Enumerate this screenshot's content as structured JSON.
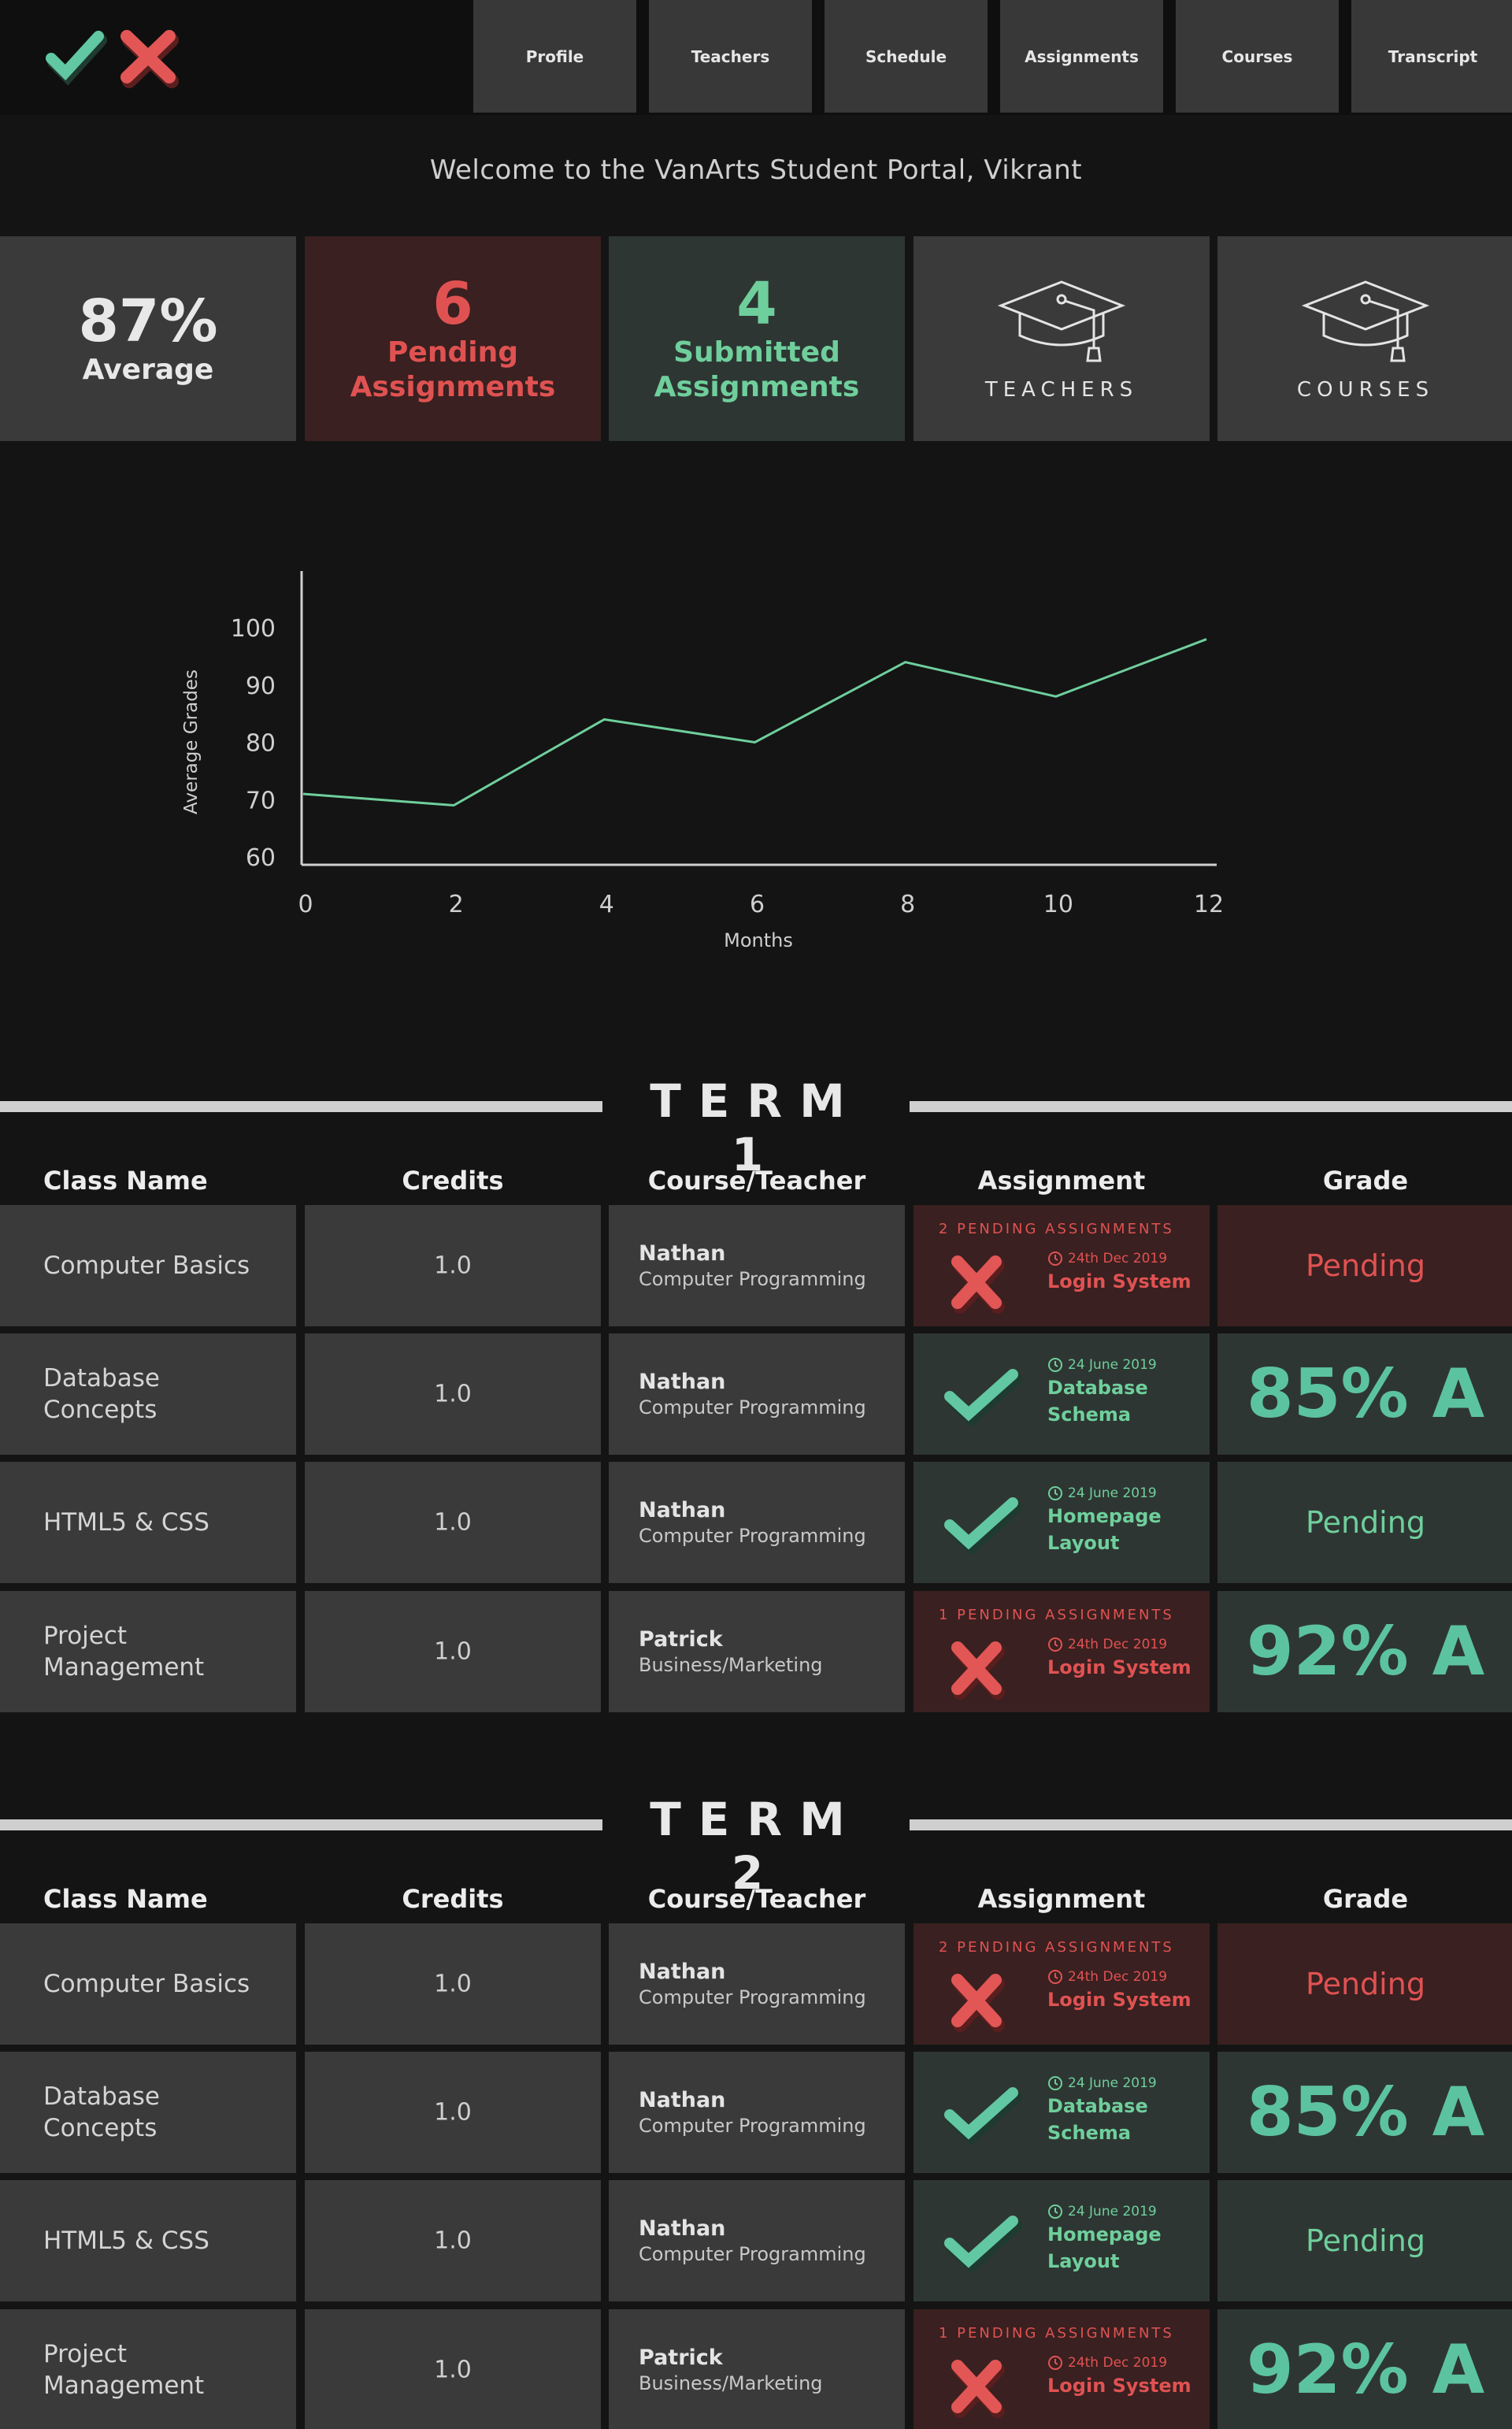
{
  "nav": [
    "Profile",
    "Teachers",
    "Schedule",
    "Assignments",
    "Courses",
    "Transcript"
  ],
  "welcome": "Welcome to the VanArts Student Portal, Vikrant",
  "stats": {
    "average_value": "87%",
    "average_label": "Average",
    "pending_count": "6",
    "pending_label_1": "Pending",
    "pending_label_2": "Assignments",
    "submitted_count": "4",
    "submitted_label_1": "Submitted",
    "submitted_label_2": "Assignments",
    "teachers_label": "TEACHERS",
    "courses_label": "COURSES"
  },
  "colors": {
    "red": "#e05252",
    "green": "#6fcf9c",
    "teal": "#5cc3a0",
    "card": "#3a3a3a"
  },
  "chart_data": {
    "type": "line",
    "x": [
      0,
      2,
      4,
      6,
      8,
      10,
      12
    ],
    "y": [
      71,
      69,
      84,
      80,
      94,
      88,
      98
    ],
    "xlabel": "Months",
    "ylabel": "Average Grades",
    "xlim": [
      0,
      12
    ],
    "ylim": [
      60,
      105
    ],
    "xticks": [
      "0",
      "2",
      "4",
      "6",
      "8",
      "10",
      "12"
    ],
    "yticks": [
      "60",
      "70",
      "80",
      "90",
      "100"
    ],
    "grid": false,
    "line_color": "#6fcf9c"
  },
  "table_headers": {
    "class_name": "Class Name",
    "credits": "Credits",
    "course_teacher": "Course/Teacher",
    "assignment": "Assignment",
    "grade": "Grade"
  },
  "terms": [
    {
      "title": "TERM 1",
      "rows": [
        {
          "class": "Computer Basics",
          "credits": "1.0",
          "teacher": "Nathan",
          "course": "Computer Programming",
          "pending_header": "2 PENDING ASSIGNMENTS",
          "date": "24th Dec 2019",
          "assignment": "Login System",
          "grade": "Pending"
        },
        {
          "class": "Database Concepts",
          "credits": "1.0",
          "teacher": "Nathan",
          "course": "Computer Programming",
          "pending_header": "",
          "date": "24 June  2019",
          "assignment": "Database Schema",
          "grade": "85% A"
        },
        {
          "class": "HTML5 & CSS",
          "credits": "1.0",
          "teacher": "Nathan",
          "course": "Computer Programming",
          "pending_header": "",
          "date": "24 June  2019",
          "assignment": "Homepage Layout",
          "grade": "Pending"
        },
        {
          "class": "Project Management",
          "credits": "1.0",
          "teacher": "Patrick",
          "course": "Business/Marketing",
          "pending_header": "1 PENDING ASSIGNMENTS",
          "date": "24th Dec 2019",
          "assignment": "Login System",
          "grade": "92% A"
        }
      ]
    },
    {
      "title": "TERM 2",
      "rows": [
        {
          "class": "Computer Basics",
          "credits": "1.0",
          "teacher": "Nathan",
          "course": "Computer Programming",
          "pending_header": "2 PENDING ASSIGNMENTS",
          "date": "24th Dec 2019",
          "assignment": "Login System",
          "grade": "Pending"
        },
        {
          "class": "Database Concepts",
          "credits": "1.0",
          "teacher": "Nathan",
          "course": "Computer Programming",
          "pending_header": "",
          "date": "24 June  2019",
          "assignment": "Database Schema",
          "grade": "85% A"
        },
        {
          "class": "HTML5 & CSS",
          "credits": "1.0",
          "teacher": "Nathan",
          "course": "Computer Programming",
          "pending_header": "",
          "date": "24 June  2019",
          "assignment": "Homepage Layout",
          "grade": "Pending"
        },
        {
          "class": "Project Management",
          "credits": "1.0",
          "teacher": "Patrick",
          "course": "Business/Marketing",
          "pending_header": "1 PENDING ASSIGNMENTS",
          "date": "24th Dec 2019",
          "assignment": "Login System",
          "grade": "92% A"
        }
      ]
    }
  ]
}
